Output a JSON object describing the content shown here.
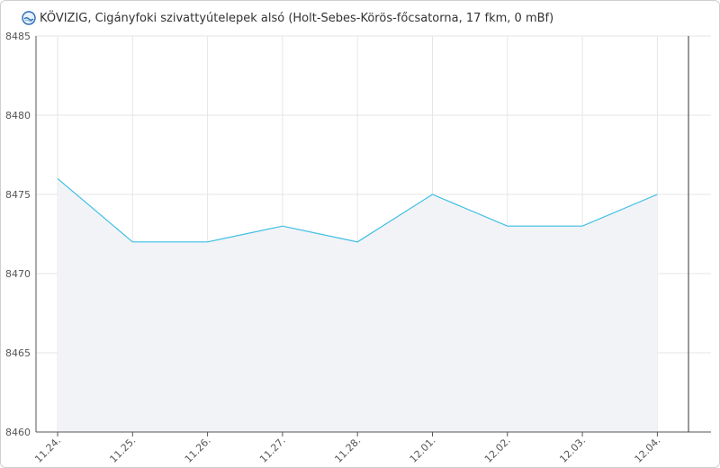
{
  "header": {
    "title": "KÖVIZIG, Cigányfoki szivattyútelepek alsó (Holt-Sebes-Körös-főcsatorna, 17 fkm, 0 mBf)",
    "logo_icon": "kovizig-logo-icon"
  },
  "colors": {
    "line": "#3bbfe3",
    "area": "#f2f3f7",
    "grid": "#e6e6e6",
    "axis": "#555555"
  },
  "chart_data": {
    "type": "area",
    "title": "KÖVIZIG, Cigányfoki szivattyútelepek alsó (Holt-Sebes-Körös-főcsatorna, 17 fkm, 0 mBf)",
    "xlabel": "",
    "ylabel": "",
    "categories": [
      "11.24.",
      "11.25.",
      "11.26.",
      "11.27.",
      "11.28.",
      "12.01.",
      "12.02.",
      "12.03.",
      "12.04."
    ],
    "values": [
      8476,
      8472,
      8472,
      8473,
      8472,
      8475,
      8473,
      8473,
      8475
    ],
    "ylim": [
      8460,
      8485
    ],
    "yticks": [
      8460,
      8465,
      8470,
      8475,
      8480,
      8485
    ],
    "grid": true,
    "legend": "none"
  }
}
